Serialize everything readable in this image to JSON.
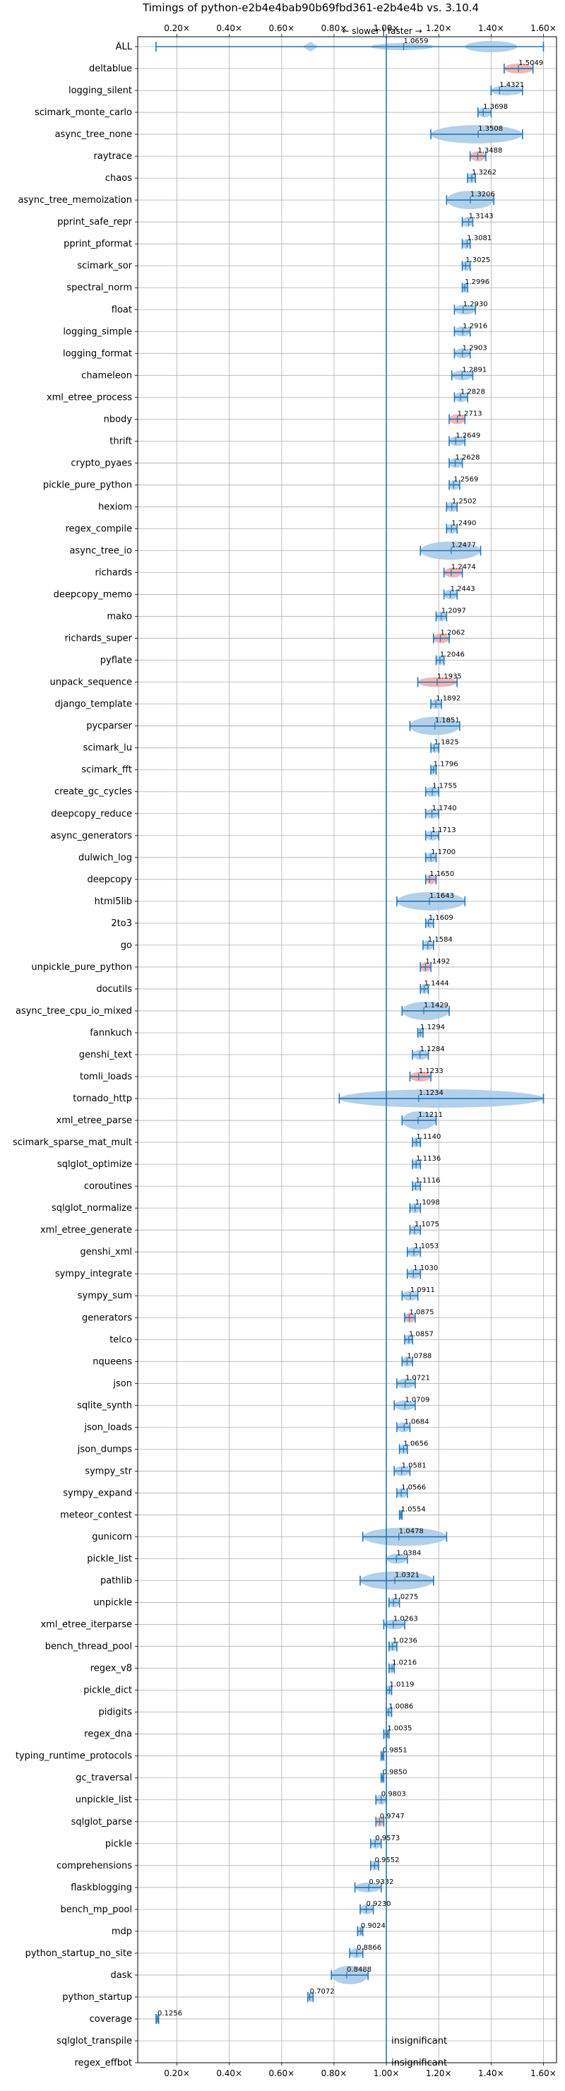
{
  "chart_data": {
    "type": "violin",
    "title": "Timings of python-e2b4e4bab90b69fbd361-e2b4e4b vs. 3.10.4",
    "direction_label": "← slower | faster →",
    "xlim": [
      0.05,
      1.65
    ],
    "xticks": [
      "0.20×",
      "0.40×",
      "0.60×",
      "0.80×",
      "1.00×",
      "1.20×",
      "1.40×",
      "1.60×"
    ],
    "xtick_values": [
      0.2,
      0.4,
      0.6,
      0.8,
      1.0,
      1.2,
      1.4,
      1.6
    ],
    "reference_line": 1.0,
    "colors": {
      "normal": "#1f77b4",
      "fill": "#a6c8e6",
      "highlight": "#f2a7a7",
      "grid": "#b0b0b0"
    },
    "benchmarks": [
      {
        "name": "ALL",
        "value": 1.0659,
        "label": "1.0659",
        "min": 0.12,
        "max": 1.6,
        "width": "wide"
      },
      {
        "name": "deltablue",
        "value": 1.5049,
        "label": "1.5049",
        "min": 1.45,
        "max": 1.56,
        "highlight": true
      },
      {
        "name": "logging_silent",
        "value": 1.4321,
        "label": "1.4321",
        "min": 1.4,
        "max": 1.52
      },
      {
        "name": "scimark_monte_carlo",
        "value": 1.3698,
        "label": "1.3698",
        "min": 1.35,
        "max": 1.4
      },
      {
        "name": "async_tree_none",
        "value": 1.3508,
        "label": "1.3508",
        "min": 1.17,
        "max": 1.52,
        "width": "wide"
      },
      {
        "name": "raytrace",
        "value": 1.3488,
        "label": "1.3488",
        "min": 1.32,
        "max": 1.38,
        "highlight": true
      },
      {
        "name": "chaos",
        "value": 1.3262,
        "label": "1.3262",
        "min": 1.31,
        "max": 1.34
      },
      {
        "name": "async_tree_memoization",
        "value": 1.3206,
        "label": "1.3206",
        "min": 1.23,
        "max": 1.41,
        "width": "wide"
      },
      {
        "name": "pprint_safe_repr",
        "value": 1.3143,
        "label": "1.3143",
        "min": 1.29,
        "max": 1.33
      },
      {
        "name": "pprint_pformat",
        "value": 1.3081,
        "label": "1.3081",
        "min": 1.29,
        "max": 1.32
      },
      {
        "name": "scimark_sor",
        "value": 1.3025,
        "label": "1.3025",
        "min": 1.29,
        "max": 1.32
      },
      {
        "name": "spectral_norm",
        "value": 1.2996,
        "label": "1.2996",
        "min": 1.29,
        "max": 1.31
      },
      {
        "name": "float",
        "value": 1.293,
        "label": "1.2930",
        "min": 1.26,
        "max": 1.34
      },
      {
        "name": "logging_simple",
        "value": 1.2916,
        "label": "1.2916",
        "min": 1.26,
        "max": 1.32
      },
      {
        "name": "logging_format",
        "value": 1.2903,
        "label": "1.2903",
        "min": 1.26,
        "max": 1.32
      },
      {
        "name": "chameleon",
        "value": 1.2891,
        "label": "1.2891",
        "min": 1.25,
        "max": 1.33
      },
      {
        "name": "xml_etree_process",
        "value": 1.2828,
        "label": "1.2828",
        "min": 1.26,
        "max": 1.31
      },
      {
        "name": "nbody",
        "value": 1.2713,
        "label": "1.2713",
        "min": 1.24,
        "max": 1.3,
        "highlight": true
      },
      {
        "name": "thrift",
        "value": 1.2649,
        "label": "1.2649",
        "min": 1.24,
        "max": 1.3
      },
      {
        "name": "crypto_pyaes",
        "value": 1.2628,
        "label": "1.2628",
        "min": 1.24,
        "max": 1.29
      },
      {
        "name": "pickle_pure_python",
        "value": 1.2569,
        "label": "1.2569",
        "min": 1.24,
        "max": 1.28
      },
      {
        "name": "hexiom",
        "value": 1.2502,
        "label": "1.2502",
        "min": 1.23,
        "max": 1.27
      },
      {
        "name": "regex_compile",
        "value": 1.249,
        "label": "1.2490",
        "min": 1.23,
        "max": 1.27
      },
      {
        "name": "async_tree_io",
        "value": 1.2477,
        "label": "1.2477",
        "min": 1.13,
        "max": 1.36,
        "width": "wide"
      },
      {
        "name": "richards",
        "value": 1.2474,
        "label": "1.2474",
        "min": 1.22,
        "max": 1.29,
        "highlight": true
      },
      {
        "name": "deepcopy_memo",
        "value": 1.2443,
        "label": "1.2443",
        "min": 1.22,
        "max": 1.27
      },
      {
        "name": "mako",
        "value": 1.2097,
        "label": "1.2097",
        "min": 1.19,
        "max": 1.23
      },
      {
        "name": "richards_super",
        "value": 1.2062,
        "label": "1.2062",
        "min": 1.18,
        "max": 1.24,
        "highlight": true
      },
      {
        "name": "pyflate",
        "value": 1.2046,
        "label": "1.2046",
        "min": 1.19,
        "max": 1.22
      },
      {
        "name": "unpack_sequence",
        "value": 1.1935,
        "label": "1.1935",
        "min": 1.12,
        "max": 1.27,
        "highlight": true
      },
      {
        "name": "django_template",
        "value": 1.1892,
        "label": "1.1892",
        "min": 1.17,
        "max": 1.21
      },
      {
        "name": "pycparser",
        "value": 1.1851,
        "label": "1.1851",
        "min": 1.09,
        "max": 1.28,
        "width": "wide"
      },
      {
        "name": "scimark_lu",
        "value": 1.1825,
        "label": "1.1825",
        "min": 1.17,
        "max": 1.2
      },
      {
        "name": "scimark_fft",
        "value": 1.1796,
        "label": "1.1796",
        "min": 1.17,
        "max": 1.19
      },
      {
        "name": "create_gc_cycles",
        "value": 1.1755,
        "label": "1.1755",
        "min": 1.15,
        "max": 1.2
      },
      {
        "name": "deepcopy_reduce",
        "value": 1.174,
        "label": "1.1740",
        "min": 1.15,
        "max": 1.2
      },
      {
        "name": "async_generators",
        "value": 1.1713,
        "label": "1.1713",
        "min": 1.15,
        "max": 1.2
      },
      {
        "name": "dulwich_log",
        "value": 1.17,
        "label": "1.1700",
        "min": 1.15,
        "max": 1.19
      },
      {
        "name": "deepcopy",
        "value": 1.165,
        "label": "1.1650",
        "min": 1.15,
        "max": 1.19,
        "highlight": true
      },
      {
        "name": "html5lib",
        "value": 1.1643,
        "label": "1.1643",
        "min": 1.04,
        "max": 1.3,
        "width": "wide"
      },
      {
        "name": "2to3",
        "value": 1.1609,
        "label": "1.1609",
        "min": 1.15,
        "max": 1.18
      },
      {
        "name": "go",
        "value": 1.1584,
        "label": "1.1584",
        "min": 1.14,
        "max": 1.18
      },
      {
        "name": "unpickle_pure_python",
        "value": 1.1492,
        "label": "1.1492",
        "min": 1.13,
        "max": 1.17,
        "highlight": true
      },
      {
        "name": "docutils",
        "value": 1.1444,
        "label": "1.1444",
        "min": 1.13,
        "max": 1.16
      },
      {
        "name": "async_tree_cpu_io_mixed",
        "value": 1.1429,
        "label": "1.1429",
        "min": 1.06,
        "max": 1.24,
        "width": "wide"
      },
      {
        "name": "fannkuch",
        "value": 1.1294,
        "label": "1.1294",
        "min": 1.12,
        "max": 1.14
      },
      {
        "name": "genshi_text",
        "value": 1.1284,
        "label": "1.1284",
        "min": 1.1,
        "max": 1.16
      },
      {
        "name": "tomli_loads",
        "value": 1.1233,
        "label": "1.1233",
        "min": 1.09,
        "max": 1.17,
        "highlight": true
      },
      {
        "name": "tornado_http",
        "value": 1.1234,
        "label": "1.1234",
        "min": 0.82,
        "max": 1.6,
        "width": "wide"
      },
      {
        "name": "xml_etree_parse",
        "value": 1.1211,
        "label": "1.1211",
        "min": 1.06,
        "max": 1.19,
        "width": "wide"
      },
      {
        "name": "scimark_sparse_mat_mult",
        "value": 1.114,
        "label": "1.1140",
        "min": 1.1,
        "max": 1.13
      },
      {
        "name": "sqlglot_optimize",
        "value": 1.1136,
        "label": "1.1136",
        "min": 1.1,
        "max": 1.13
      },
      {
        "name": "coroutines",
        "value": 1.1116,
        "label": "1.1116",
        "min": 1.1,
        "max": 1.13
      },
      {
        "name": "sqlglot_normalize",
        "value": 1.1098,
        "label": "1.1098",
        "min": 1.09,
        "max": 1.13
      },
      {
        "name": "xml_etree_generate",
        "value": 1.1075,
        "label": "1.1075",
        "min": 1.09,
        "max": 1.13
      },
      {
        "name": "genshi_xml",
        "value": 1.1053,
        "label": "1.1053",
        "min": 1.08,
        "max": 1.13
      },
      {
        "name": "sympy_integrate",
        "value": 1.103,
        "label": "1.1030",
        "min": 1.08,
        "max": 1.13
      },
      {
        "name": "sympy_sum",
        "value": 1.0911,
        "label": "1.0911",
        "min": 1.06,
        "max": 1.12
      },
      {
        "name": "generators",
        "value": 1.0875,
        "label": "1.0875",
        "min": 1.07,
        "max": 1.11,
        "highlight": true
      },
      {
        "name": "telco",
        "value": 1.0857,
        "label": "1.0857",
        "min": 1.07,
        "max": 1.1
      },
      {
        "name": "nqueens",
        "value": 1.0788,
        "label": "1.0788",
        "min": 1.06,
        "max": 1.1
      },
      {
        "name": "json",
        "value": 1.0721,
        "label": "1.0721",
        "min": 1.04,
        "max": 1.11
      },
      {
        "name": "sqlite_synth",
        "value": 1.0709,
        "label": "1.0709",
        "min": 1.03,
        "max": 1.11
      },
      {
        "name": "json_loads",
        "value": 1.0684,
        "label": "1.0684",
        "min": 1.04,
        "max": 1.09
      },
      {
        "name": "json_dumps",
        "value": 1.0656,
        "label": "1.0656",
        "min": 1.05,
        "max": 1.08
      },
      {
        "name": "sympy_str",
        "value": 1.0581,
        "label": "1.0581",
        "min": 1.03,
        "max": 1.09
      },
      {
        "name": "sympy_expand",
        "value": 1.0566,
        "label": "1.0566",
        "min": 1.04,
        "max": 1.08
      },
      {
        "name": "meteor_contest",
        "value": 1.0554,
        "label": "1.0554",
        "min": 1.05,
        "max": 1.06
      },
      {
        "name": "gunicorn",
        "value": 1.0478,
        "label": "1.0478",
        "min": 0.91,
        "max": 1.23,
        "width": "wide"
      },
      {
        "name": "pickle_list",
        "value": 1.0384,
        "label": "1.0384",
        "min": 1.0,
        "max": 1.08
      },
      {
        "name": "pathlib",
        "value": 1.0321,
        "label": "1.0321",
        "min": 0.9,
        "max": 1.18,
        "width": "wide"
      },
      {
        "name": "unpickle",
        "value": 1.0275,
        "label": "1.0275",
        "min": 1.01,
        "max": 1.05
      },
      {
        "name": "xml_etree_iterparse",
        "value": 1.0263,
        "label": "1.0263",
        "min": 0.99,
        "max": 1.07
      },
      {
        "name": "bench_thread_pool",
        "value": 1.0236,
        "label": "1.0236",
        "min": 1.01,
        "max": 1.04
      },
      {
        "name": "regex_v8",
        "value": 1.0216,
        "label": "1.0216",
        "min": 1.01,
        "max": 1.03
      },
      {
        "name": "pickle_dict",
        "value": 1.0119,
        "label": "1.0119",
        "min": 1.0,
        "max": 1.02
      },
      {
        "name": "pidigits",
        "value": 1.0086,
        "label": "1.0086",
        "min": 1.0,
        "max": 1.02
      },
      {
        "name": "regex_dna",
        "value": 1.0035,
        "label": "1.0035",
        "min": 0.99,
        "max": 1.01
      },
      {
        "name": "typing_runtime_protocols",
        "value": 0.9851,
        "label": "0.9851",
        "min": 0.98,
        "max": 0.99
      },
      {
        "name": "gc_traversal",
        "value": 0.985,
        "label": "0.9850",
        "min": 0.98,
        "max": 0.99
      },
      {
        "name": "unpickle_list",
        "value": 0.9803,
        "label": "0.9803",
        "min": 0.96,
        "max": 1.0
      },
      {
        "name": "sqlglot_parse",
        "value": 0.9747,
        "label": "0.9747",
        "min": 0.96,
        "max": 0.99,
        "highlight": true
      },
      {
        "name": "pickle",
        "value": 0.9573,
        "label": "0.9573",
        "min": 0.94,
        "max": 0.98
      },
      {
        "name": "comprehensions",
        "value": 0.9552,
        "label": "0.9552",
        "min": 0.94,
        "max": 0.97
      },
      {
        "name": "flaskblogging",
        "value": 0.9332,
        "label": "0.9332",
        "min": 0.88,
        "max": 0.98
      },
      {
        "name": "bench_mp_pool",
        "value": 0.923,
        "label": "0.9230",
        "min": 0.9,
        "max": 0.95
      },
      {
        "name": "mdp",
        "value": 0.9024,
        "label": "0.9024",
        "min": 0.89,
        "max": 0.91
      },
      {
        "name": "python_startup_no_site",
        "value": 0.8866,
        "label": "0.8866",
        "min": 0.86,
        "max": 0.91
      },
      {
        "name": "dask",
        "value": 0.8488,
        "label": "0.8488",
        "min": 0.79,
        "max": 0.93,
        "width": "wide"
      },
      {
        "name": "python_startup",
        "value": 0.7072,
        "label": "0.7072",
        "min": 0.7,
        "max": 0.72
      },
      {
        "name": "coverage",
        "value": 0.1256,
        "label": "0.1256",
        "min": 0.12,
        "max": 0.13
      },
      {
        "name": "sqlglot_transpile",
        "value": null,
        "annotation": "insignificant"
      },
      {
        "name": "regex_effbot",
        "value": null,
        "annotation": "insignificant"
      }
    ]
  }
}
